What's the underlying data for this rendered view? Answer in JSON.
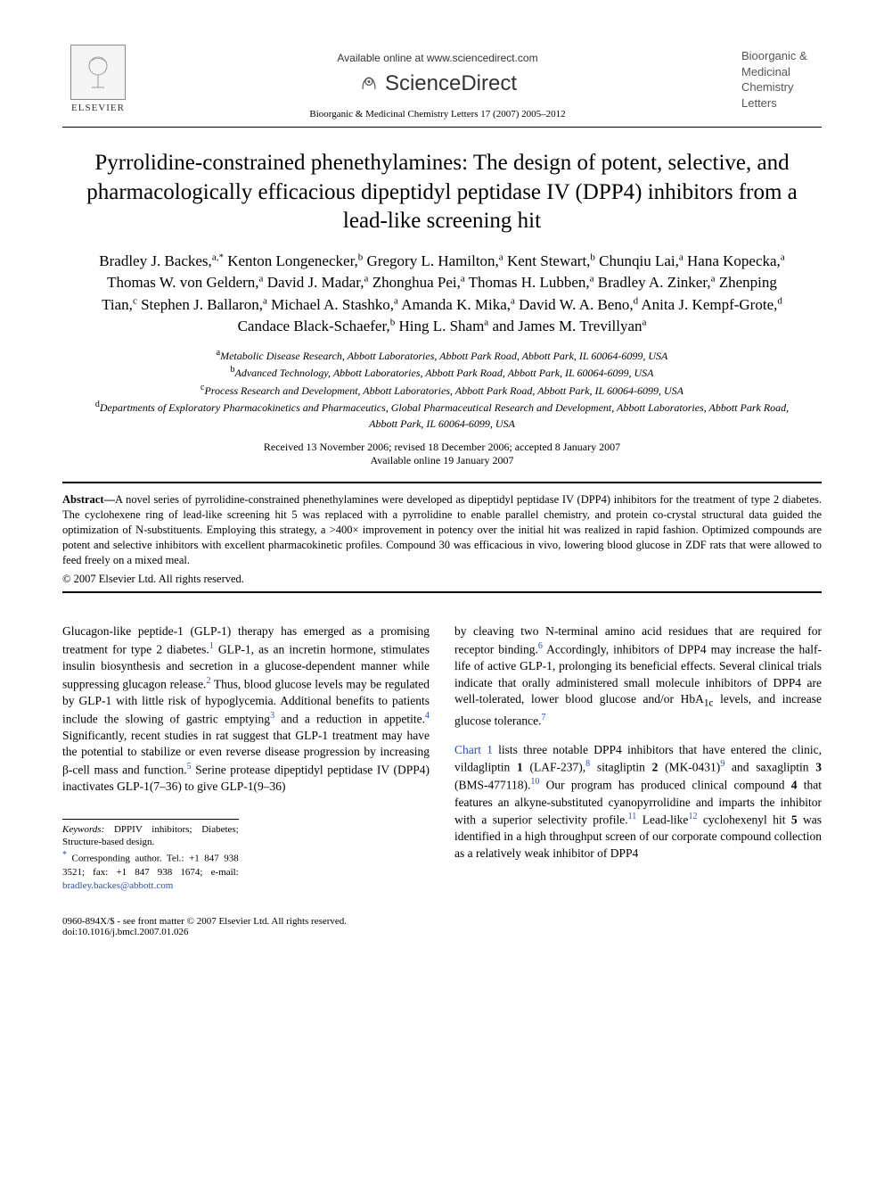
{
  "header": {
    "available_online": "Available online at www.sciencedirect.com",
    "sciencedirect": "ScienceDirect",
    "elsevier": "ELSEVIER",
    "citation": "Bioorganic & Medicinal Chemistry Letters 17 (2007) 2005–2012",
    "journal_cover": "Bioorganic & Medicinal Chemistry Letters"
  },
  "title": "Pyrrolidine-constrained phenethylamines: The design of potent, selective, and pharmacologically efficacious dipeptidyl peptidase IV (DPP4) inhibitors from a lead-like screening hit",
  "authors_html": "Bradley J. Backes,<sup>a,*</sup> Kenton Longenecker,<sup>b</sup> Gregory L. Hamilton,<sup>a</sup> Kent Stewart,<sup>b</sup> Chunqiu Lai,<sup>a</sup> Hana Kopecka,<sup>a</sup> Thomas W. von Geldern,<sup>a</sup> David J. Madar,<sup>a</sup> Zhonghua Pei,<sup>a</sup> Thomas H. Lubben,<sup>a</sup> Bradley A. Zinker,<sup>a</sup> Zhenping Tian,<sup>c</sup> Stephen J. Ballaron,<sup>a</sup> Michael A. Stashko,<sup>a</sup> Amanda K. Mika,<sup>a</sup> David W. A. Beno,<sup>d</sup> Anita J. Kempf-Grote,<sup>d</sup> Candace Black-Schaefer,<sup>b</sup> Hing L. Sham<sup>a</sup> and James M. Trevillyan<sup>a</sup>",
  "affiliations": {
    "a": "Metabolic Disease Research, Abbott Laboratories, Abbott Park Road, Abbott Park, IL 60064-6099, USA",
    "b": "Advanced Technology, Abbott Laboratories, Abbott Park Road, Abbott Park, IL 60064-6099, USA",
    "c": "Process Research and Development, Abbott Laboratories, Abbott Park Road, Abbott Park, IL 60064-6099, USA",
    "d": "Departments of Exploratory Pharmacokinetics and Pharmaceutics, Global Pharmaceutical Research and Development, Abbott Laboratories, Abbott Park Road, Abbott Park, IL 60064-6099, USA"
  },
  "dates": {
    "received": "Received 13 November 2006; revised 18 December 2006; accepted 8 January 2007",
    "online": "Available online 19 January 2007"
  },
  "abstract_label": "Abstract—",
  "abstract_text": "A novel series of pyrrolidine-constrained phenethylamines were developed as dipeptidyl peptidase IV (DPP4) inhibitors for the treatment of type 2 diabetes. The cyclohexene ring of lead-like screening hit 5 was replaced with a pyrrolidine to enable parallel chemistry, and protein co-crystal structural data guided the optimization of N-substituents. Employing this strategy, a >400× improvement in potency over the initial hit was realized in rapid fashion. Optimized compounds are potent and selective inhibitors with excellent pharmacokinetic profiles. Compound 30 was efficacious in vivo, lowering blood glucose in ZDF rats that were allowed to feed freely on a mixed meal.",
  "copyright": "© 2007 Elsevier Ltd. All rights reserved.",
  "body": {
    "col1_html": "Glucagon-like peptide-1 (GLP-1) therapy has emerged as a promising treatment for type 2 diabetes.<sup>1</sup> GLP-1, as an incretin hormone, stimulates insulin biosynthesis and secretion in a glucose-dependent manner while suppressing glucagon release.<sup>2</sup> Thus, blood glucose levels may be regulated by GLP-1 with little risk of hypoglycemia. Additional benefits to patients include the slowing of gastric emptying<sup>3</sup> and a reduction in appetite.<sup>4</sup> Significantly, recent studies in rat suggest that GLP-1 treatment may have the potential to stabilize or even reverse disease progression by increasing β-cell mass and function.<sup>5</sup> Serine protease dipeptidyl peptidase IV (DPP4) inactivates GLP-1(7–36) to give GLP-1(9–36)",
    "col2_html": "by cleaving two N-terminal amino acid residues that are required for receptor binding.<sup>6</sup> Accordingly, inhibitors of DPP4 may increase the half-life of active GLP-1, prolonging its beneficial effects. Several clinical trials indicate that orally administered small molecule inhibitors of DPP4 are well-tolerated, lower blood glucose and/or HbA<sub>1c</sub> levels, and increase glucose tolerance.<sup>7</sup>",
    "col2b_html": "<a>Chart 1</a> lists three notable DPP4 inhibitors that have entered the clinic, vildagliptin <b>1</b> (LAF-237),<sup>8</sup> sitagliptin <b>2</b> (MK-0431)<sup>9</sup> and saxagliptin <b>3</b> (BMS-477118).<sup>10</sup> Our program has produced clinical compound <b>4</b> that features an alkyne-substituted cyanopyrrolidine and imparts the inhibitor with a superior selectivity profile.<sup>11</sup> Lead-like<sup>12</sup> cyclohexenyl hit <b>5</b> was identified in a high throughput screen of our corporate compound collection as a relatively weak inhibitor of DPP4"
  },
  "footnotes": {
    "keywords_label": "Keywords:",
    "keywords": " DPPIV inhibitors; Diabetes; Structure-based design.",
    "corresponding": "Corresponding author. Tel.: +1 847 938 3521; fax: +1 847 938 1674; e-mail: ",
    "email": "bradley.backes@abbott.com"
  },
  "footer": {
    "left": "0960-894X/$ - see front matter © 2007 Elsevier Ltd. All rights reserved.",
    "doi": "doi:10.1016/j.bmcl.2007.01.026"
  },
  "colors": {
    "link": "#2a4db0",
    "text": "#000000",
    "background": "#ffffff",
    "rule": "#000000"
  },
  "typography": {
    "title_fontsize": 25,
    "authors_fontsize": 17,
    "affil_fontsize": 12,
    "abstract_fontsize": 12.5,
    "body_fontsize": 13.5,
    "footnote_fontsize": 11
  }
}
